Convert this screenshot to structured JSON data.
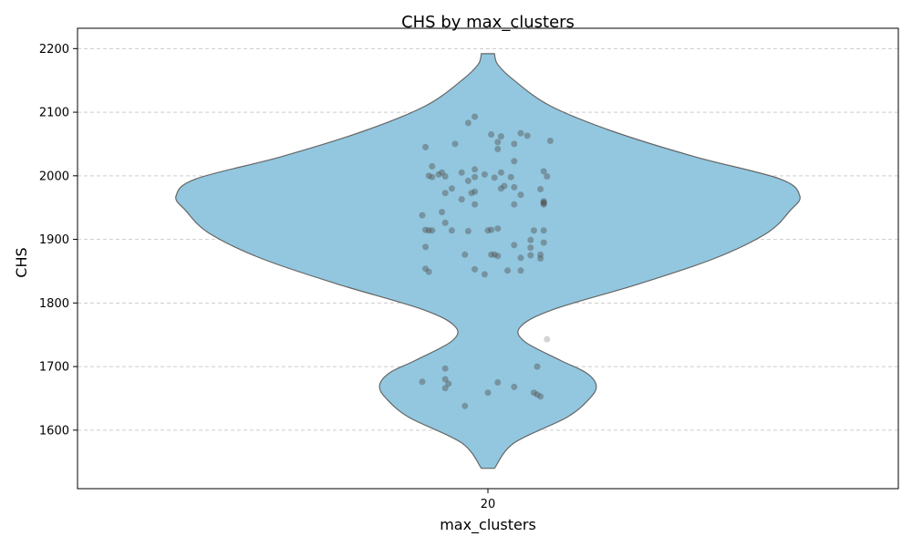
{
  "chart_data": {
    "type": "violin",
    "title": "CHS by max_clusters",
    "xlabel": "max_clusters",
    "ylabel": "CHS",
    "categories": [
      "20"
    ],
    "ylim": [
      1508,
      2232
    ],
    "yticks": [
      1600,
      1700,
      1800,
      1900,
      2000,
      2100,
      2200
    ],
    "grid": "horizontal-dashed",
    "violin_color": "#92c7df",
    "edge_color": "#666666",
    "point_color": "#555555",
    "violin_extent": [
      1540,
      2192
    ],
    "density_profile": [
      {
        "y": 1540,
        "w": 0.02
      },
      {
        "y": 1580,
        "w": 0.08
      },
      {
        "y": 1620,
        "w": 0.24
      },
      {
        "y": 1650,
        "w": 0.31
      },
      {
        "y": 1670,
        "w": 0.33
      },
      {
        "y": 1690,
        "w": 0.3
      },
      {
        "y": 1710,
        "w": 0.22
      },
      {
        "y": 1740,
        "w": 0.11
      },
      {
        "y": 1763,
        "w": 0.1
      },
      {
        "y": 1790,
        "w": 0.2
      },
      {
        "y": 1830,
        "w": 0.46
      },
      {
        "y": 1870,
        "w": 0.69
      },
      {
        "y": 1910,
        "w": 0.85
      },
      {
        "y": 1945,
        "w": 0.92
      },
      {
        "y": 1968,
        "w": 0.95
      },
      {
        "y": 1995,
        "w": 0.89
      },
      {
        "y": 2030,
        "w": 0.63
      },
      {
        "y": 2070,
        "w": 0.38
      },
      {
        "y": 2110,
        "w": 0.19
      },
      {
        "y": 2150,
        "w": 0.08
      },
      {
        "y": 2175,
        "w": 0.03
      },
      {
        "y": 2192,
        "w": 0.02
      }
    ],
    "points": [
      {
        "x": -0.19,
        "y": 2045
      },
      {
        "x": -0.17,
        "y": 2015
      },
      {
        "x": -0.18,
        "y": 2000
      },
      {
        "x": -0.17,
        "y": 1998
      },
      {
        "x": -0.15,
        "y": 2002
      },
      {
        "x": -0.14,
        "y": 2005
      },
      {
        "x": -0.13,
        "y": 1999
      },
      {
        "x": -0.13,
        "y": 1973
      },
      {
        "x": -0.11,
        "y": 1980
      },
      {
        "x": -0.1,
        "y": 2050
      },
      {
        "x": -0.08,
        "y": 2005
      },
      {
        "x": -0.08,
        "y": 1963
      },
      {
        "x": -0.06,
        "y": 2083
      },
      {
        "x": -0.06,
        "y": 1992
      },
      {
        "x": -0.05,
        "y": 1973
      },
      {
        "x": -0.04,
        "y": 1975
      },
      {
        "x": -0.04,
        "y": 2093
      },
      {
        "x": -0.04,
        "y": 1998
      },
      {
        "x": -0.04,
        "y": 2010
      },
      {
        "x": -0.04,
        "y": 1955
      },
      {
        "x": -0.01,
        "y": 2002
      },
      {
        "x": 0.01,
        "y": 2065
      },
      {
        "x": 0.02,
        "y": 1997
      },
      {
        "x": 0.03,
        "y": 2042
      },
      {
        "x": 0.03,
        "y": 2053
      },
      {
        "x": 0.04,
        "y": 2062
      },
      {
        "x": 0.04,
        "y": 2005
      },
      {
        "x": 0.04,
        "y": 1980
      },
      {
        "x": 0.05,
        "y": 1984
      },
      {
        "x": 0.07,
        "y": 1998
      },
      {
        "x": 0.08,
        "y": 2050
      },
      {
        "x": 0.08,
        "y": 2023
      },
      {
        "x": 0.08,
        "y": 1982
      },
      {
        "x": 0.08,
        "y": 1955
      },
      {
        "x": 0.1,
        "y": 2067
      },
      {
        "x": 0.1,
        "y": 1970
      },
      {
        "x": 0.12,
        "y": 2063
      },
      {
        "x": 0.16,
        "y": 1979
      },
      {
        "x": 0.17,
        "y": 1957
      },
      {
        "x": 0.17,
        "y": 1960
      },
      {
        "x": 0.17,
        "y": 1958
      },
      {
        "x": 0.17,
        "y": 1955
      },
      {
        "x": 0.17,
        "y": 2007
      },
      {
        "x": 0.18,
        "y": 1999
      },
      {
        "x": 0.19,
        "y": 2055
      },
      {
        "x": -0.2,
        "y": 1938
      },
      {
        "x": -0.19,
        "y": 1915
      },
      {
        "x": -0.18,
        "y": 1914
      },
      {
        "x": -0.17,
        "y": 1914
      },
      {
        "x": -0.14,
        "y": 1943
      },
      {
        "x": -0.13,
        "y": 1926
      },
      {
        "x": -0.11,
        "y": 1914
      },
      {
        "x": -0.07,
        "y": 1876
      },
      {
        "x": -0.06,
        "y": 1913
      },
      {
        "x": 0.0,
        "y": 1914
      },
      {
        "x": 0.01,
        "y": 1876
      },
      {
        "x": 0.01,
        "y": 1915
      },
      {
        "x": 0.02,
        "y": 1876
      },
      {
        "x": 0.03,
        "y": 1917
      },
      {
        "x": 0.03,
        "y": 1874
      },
      {
        "x": 0.08,
        "y": 1891
      },
      {
        "x": 0.1,
        "y": 1871
      },
      {
        "x": 0.13,
        "y": 1899
      },
      {
        "x": 0.13,
        "y": 1875
      },
      {
        "x": 0.13,
        "y": 1887
      },
      {
        "x": 0.14,
        "y": 1914
      },
      {
        "x": 0.16,
        "y": 1876
      },
      {
        "x": 0.16,
        "y": 1870
      },
      {
        "x": 0.17,
        "y": 1895
      },
      {
        "x": 0.17,
        "y": 1914
      },
      {
        "x": -0.19,
        "y": 1888
      },
      {
        "x": -0.19,
        "y": 1854
      },
      {
        "x": -0.18,
        "y": 1849
      },
      {
        "x": -0.04,
        "y": 1853
      },
      {
        "x": -0.01,
        "y": 1845
      },
      {
        "x": 0.06,
        "y": 1851
      },
      {
        "x": 0.1,
        "y": 1851
      },
      {
        "x": 0.18,
        "y": 1743
      },
      {
        "x": -0.2,
        "y": 1676
      },
      {
        "x": -0.13,
        "y": 1697
      },
      {
        "x": -0.13,
        "y": 1680
      },
      {
        "x": -0.12,
        "y": 1673
      },
      {
        "x": -0.13,
        "y": 1666
      },
      {
        "x": -0.07,
        "y": 1638
      },
      {
        "x": 0.0,
        "y": 1659
      },
      {
        "x": 0.03,
        "y": 1675
      },
      {
        "x": 0.08,
        "y": 1668
      },
      {
        "x": 0.15,
        "y": 1700
      },
      {
        "x": 0.14,
        "y": 1659
      },
      {
        "x": 0.15,
        "y": 1656
      },
      {
        "x": 0.16,
        "y": 1653
      }
    ]
  }
}
